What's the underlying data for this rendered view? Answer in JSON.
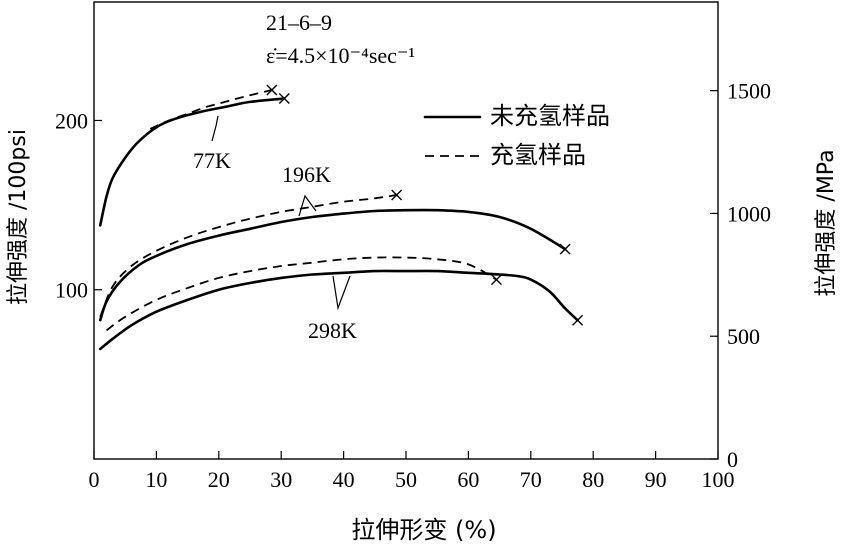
{
  "chart_data": {
    "type": "line",
    "annotation": {
      "alloy": "21–6–9",
      "strain_rate": "ε̇=4.5×10⁻⁴sec⁻¹"
    },
    "xlabel": "拉伸形变 (%)",
    "ylabel_left": "拉伸强度 /100psi",
    "ylabel_right": "拉伸强度 /MPa",
    "xlim": [
      0,
      100
    ],
    "ylim_left": [
      0,
      270
    ],
    "ylim_right": [
      0,
      1861
    ],
    "x_ticks": [
      0,
      10,
      20,
      30,
      40,
      50,
      60,
      70,
      80,
      90,
      100
    ],
    "y_ticks_left": [
      100,
      200
    ],
    "y_ticks_right": [
      0,
      500,
      1000,
      1500
    ],
    "legend": {
      "position": "top-right",
      "entries": [
        {
          "label": "未充氢样品",
          "style": "solid"
        },
        {
          "label": "充氢样品",
          "style": "dashed"
        }
      ]
    },
    "temperature_labels": [
      "77K",
      "196K",
      "298K"
    ],
    "series": [
      {
        "group": "77K",
        "style": "solid",
        "x": [
          1,
          2,
          3,
          5,
          7,
          10,
          13,
          17,
          21,
          25,
          30.5
        ],
        "y": [
          138,
          155,
          166,
          178,
          187,
          196,
          201,
          205,
          208,
          211,
          213
        ]
      },
      {
        "group": "77K",
        "style": "dashed",
        "x": [
          9,
          12,
          15,
          18,
          21,
          24,
          28.5
        ],
        "y": [
          195,
          200,
          204,
          208,
          211,
          214,
          218
        ]
      },
      {
        "group": "196K",
        "style": "solid",
        "x": [
          1,
          2,
          4,
          7,
          10,
          15,
          20,
          25,
          30,
          35,
          40,
          45,
          50,
          55,
          60,
          65,
          70,
          75.5
        ],
        "y": [
          82,
          93,
          104,
          114,
          120,
          127,
          132,
          136,
          140,
          143,
          145,
          146.5,
          147,
          147,
          146,
          143,
          136,
          124
        ]
      },
      {
        "group": "196K",
        "style": "dashed",
        "x": [
          1,
          3,
          6,
          10,
          15,
          20,
          25,
          30,
          35,
          40,
          45,
          48.5
        ],
        "y": [
          84,
          102,
          114,
          123,
          131,
          137,
          142,
          146,
          149,
          152,
          154,
          156
        ]
      },
      {
        "group": "298K",
        "style": "solid",
        "x": [
          1,
          3,
          6,
          10,
          15,
          20,
          25,
          30,
          35,
          40,
          45,
          50,
          55,
          60,
          65,
          68,
          70,
          73,
          75.5,
          77.5
        ],
        "y": [
          65,
          71,
          79,
          87,
          94,
          100,
          104,
          107,
          109,
          110,
          111,
          111,
          111,
          110,
          109,
          108,
          106,
          99,
          89,
          82
        ]
      },
      {
        "group": "298K",
        "style": "dashed",
        "x": [
          2,
          5,
          10,
          15,
          20,
          25,
          30,
          35,
          40,
          45,
          50,
          55,
          60,
          64.5
        ],
        "y": [
          76,
          84,
          94,
          101,
          107,
          111,
          114,
          116,
          118,
          119,
          119,
          118,
          115,
          106
        ]
      }
    ],
    "fracture_markers": [
      {
        "x": 30.5,
        "y": 213
      },
      {
        "x": 28.5,
        "y": 218
      },
      {
        "x": 75.5,
        "y": 124
      },
      {
        "x": 48.5,
        "y": 156
      },
      {
        "x": 64.5,
        "y": 106
      },
      {
        "x": 77.5,
        "y": 82
      }
    ]
  }
}
